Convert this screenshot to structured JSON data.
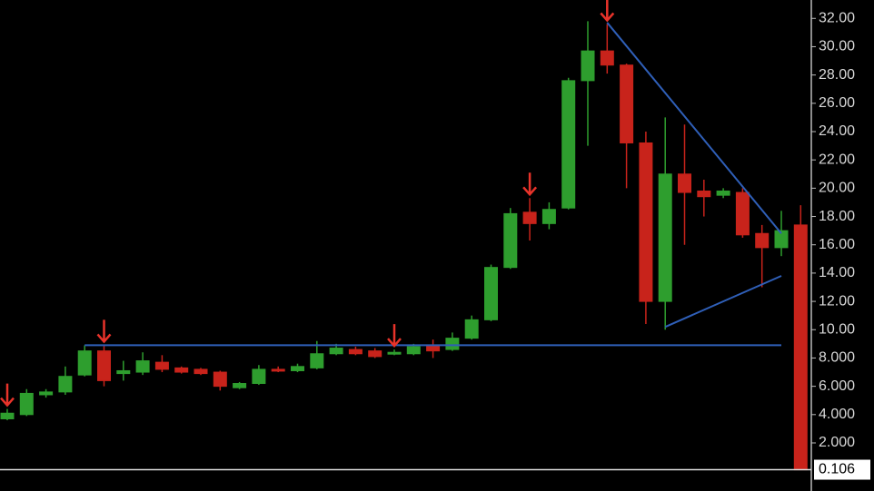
{
  "chart_data": {
    "type": "candlestick",
    "series": [
      {
        "up_color": "#2e9e2e",
        "down_color": "#c8231b",
        "open": [
          3.7,
          4.0,
          5.4,
          5.6,
          6.8,
          8.5,
          6.9,
          7.0,
          7.7,
          7.3,
          7.2,
          7.0,
          5.9,
          6.2,
          7.2,
          7.1,
          7.3,
          8.3,
          8.6,
          8.5,
          8.3,
          8.3,
          8.9,
          8.6,
          9.4,
          10.7,
          14.4,
          18.3,
          17.5,
          18.6,
          27.6,
          29.7,
          28.7,
          23.2,
          12.0,
          21.0,
          19.8,
          19.5,
          19.7,
          16.8,
          15.8,
          17.4
        ],
        "high": [
          4.4,
          5.8,
          5.8,
          7.4,
          8.9,
          8.9,
          7.8,
          8.4,
          8.2,
          7.4,
          7.3,
          7.1,
          6.3,
          7.5,
          7.4,
          7.6,
          9.2,
          9.0,
          8.8,
          8.7,
          8.6,
          9.0,
          9.3,
          9.8,
          11.0,
          14.6,
          18.6,
          19.3,
          19.0,
          27.8,
          31.8,
          31.6,
          28.8,
          24.0,
          25.0,
          24.5,
          20.6,
          20.0,
          20.0,
          17.4,
          18.4,
          18.8
        ],
        "low": [
          3.6,
          3.9,
          5.2,
          5.4,
          6.7,
          6.0,
          6.4,
          6.8,
          7.0,
          6.9,
          6.8,
          5.7,
          5.8,
          6.1,
          7.0,
          7.0,
          7.2,
          8.2,
          8.2,
          8.0,
          8.2,
          8.2,
          8.0,
          8.5,
          9.3,
          10.6,
          14.3,
          16.3,
          17.1,
          18.5,
          23.0,
          28.1,
          20.0,
          10.4,
          10.0,
          16.0,
          18.0,
          19.3,
          16.5,
          13.0,
          15.2,
          0.1
        ],
        "close": [
          4.1,
          5.5,
          5.6,
          6.7,
          8.5,
          6.4,
          7.1,
          7.8,
          7.2,
          7.0,
          6.9,
          6.0,
          6.2,
          7.2,
          7.1,
          7.4,
          8.3,
          8.7,
          8.3,
          8.1,
          8.4,
          8.8,
          8.5,
          9.4,
          10.7,
          14.4,
          18.2,
          17.5,
          18.5,
          27.6,
          29.7,
          28.7,
          23.2,
          12.0,
          21.0,
          19.7,
          19.4,
          19.8,
          16.7,
          15.8,
          17.0,
          0.1
        ]
      }
    ],
    "signal_arrows": [
      0,
      5,
      20,
      27,
      31
    ],
    "trend_lines": [
      {
        "start": [
          4,
          8.9
        ],
        "end": [
          40,
          8.9
        ]
      },
      {
        "start": [
          31,
          31.7
        ],
        "end": [
          40,
          16.8
        ]
      },
      {
        "start": [
          34,
          10.2
        ],
        "end": [
          40,
          13.8
        ]
      }
    ],
    "last_price": {
      "value": 0.106,
      "label": "0.106"
    },
    "ylim": [
      -1.4,
      33.3
    ],
    "yticks": [
      {
        "value": 32,
        "label": "32.00"
      },
      {
        "value": 30,
        "label": "30.00"
      },
      {
        "value": 28,
        "label": "28.00"
      },
      {
        "value": 26,
        "label": "26.00"
      },
      {
        "value": 24,
        "label": "24.00"
      },
      {
        "value": 22,
        "label": "22.00"
      },
      {
        "value": 20,
        "label": "20.00"
      },
      {
        "value": 18,
        "label": "18.00"
      },
      {
        "value": 16,
        "label": "16.00"
      },
      {
        "value": 14,
        "label": "14.00"
      },
      {
        "value": 12,
        "label": "12.00"
      },
      {
        "value": 10,
        "label": "10.00"
      },
      {
        "value": 8,
        "label": "8.000"
      },
      {
        "value": 6,
        "label": "6.000"
      },
      {
        "value": 4,
        "label": "4.000"
      },
      {
        "value": 2,
        "label": "2.000"
      }
    ]
  }
}
